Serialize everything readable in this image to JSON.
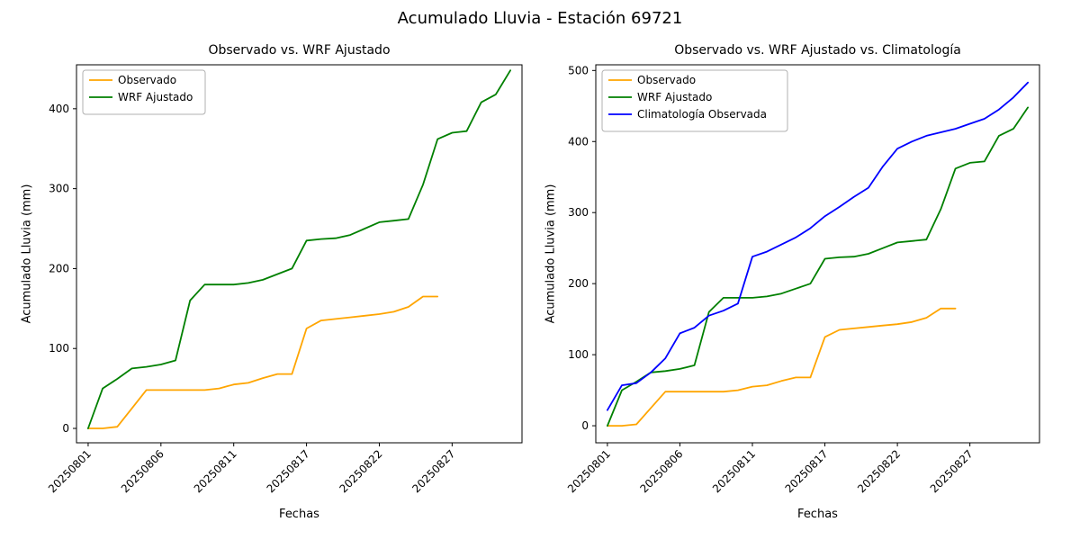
{
  "figure": {
    "title": "Acumulado Lluvia - Estación 69721",
    "background": "#ffffff"
  },
  "colors": {
    "observado": "#ffa500",
    "wrf_ajustado": "#008000",
    "climatologia": "#0000ff",
    "axes": "#000000",
    "legend_border": "#b0b0b0"
  },
  "chart_data": [
    {
      "type": "line",
      "title": "Observado vs. WRF Ajustado",
      "xlabel": "Fechas",
      "ylabel": "Acumulado Lluvia (mm)",
      "grid": false,
      "legend_position": "upper left",
      "ylim": [
        -18,
        455
      ],
      "yticks": [
        0,
        100,
        200,
        300,
        400
      ],
      "xtick_indices": [
        0,
        5,
        10,
        15,
        20,
        25
      ],
      "categories": [
        "20250801",
        "20250802",
        "20250803",
        "20250804",
        "20250805",
        "20250806",
        "20250807",
        "20250808",
        "20250809",
        "20250810",
        "20250811",
        "20250812",
        "20250813",
        "20250814",
        "20250815",
        "20250817",
        "20250818",
        "20250819",
        "20250820",
        "20250821",
        "20250822",
        "20250823",
        "20250824",
        "20250825",
        "20250826",
        "20250827",
        "20250828",
        "20250829",
        "20250830",
        "20250831"
      ],
      "series": [
        {
          "name": "Observado",
          "color": "#ffa500",
          "values": [
            0,
            0,
            2,
            25,
            48,
            48,
            48,
            48,
            48,
            50,
            55,
            57,
            63,
            68,
            68,
            125,
            135,
            137,
            139,
            141,
            143,
            146,
            152,
            165,
            165
          ]
        },
        {
          "name": "WRF Ajustado",
          "color": "#008000",
          "values": [
            0,
            50,
            62,
            75,
            77,
            80,
            85,
            160,
            180,
            180,
            180,
            182,
            186,
            193,
            200,
            235,
            237,
            238,
            242,
            250,
            258,
            260,
            262,
            305,
            362,
            370,
            372,
            408,
            418,
            448
          ]
        }
      ]
    },
    {
      "type": "line",
      "title": "Observado vs. WRF Ajustado vs. Climatología",
      "xlabel": "Fechas",
      "ylabel": "Acumulado Lluvia (mm)",
      "grid": false,
      "legend_position": "upper left",
      "ylim": [
        -24,
        508
      ],
      "yticks": [
        0,
        100,
        200,
        300,
        400,
        500
      ],
      "xtick_indices": [
        0,
        5,
        10,
        15,
        20,
        25
      ],
      "categories": [
        "20250801",
        "20250802",
        "20250803",
        "20250804",
        "20250805",
        "20250806",
        "20250807",
        "20250808",
        "20250809",
        "20250810",
        "20250811",
        "20250812",
        "20250813",
        "20250814",
        "20250815",
        "20250817",
        "20250818",
        "20250819",
        "20250820",
        "20250821",
        "20250822",
        "20250823",
        "20250824",
        "20250825",
        "20250826",
        "20250827",
        "20250828",
        "20250829",
        "20250830",
        "20250831"
      ],
      "series": [
        {
          "name": "Observado",
          "color": "#ffa500",
          "values": [
            0,
            0,
            2,
            25,
            48,
            48,
            48,
            48,
            48,
            50,
            55,
            57,
            63,
            68,
            68,
            125,
            135,
            137,
            139,
            141,
            143,
            146,
            152,
            165,
            165
          ]
        },
        {
          "name": "WRF Ajustado",
          "color": "#008000",
          "values": [
            0,
            50,
            62,
            75,
            77,
            80,
            85,
            160,
            180,
            180,
            180,
            182,
            186,
            193,
            200,
            235,
            237,
            238,
            242,
            250,
            258,
            260,
            262,
            305,
            362,
            370,
            372,
            408,
            418,
            448
          ]
        },
        {
          "name": "Climatología Observada",
          "color": "#0000ff",
          "values": [
            22,
            57,
            60,
            75,
            95,
            130,
            138,
            155,
            162,
            172,
            238,
            245,
            255,
            265,
            278,
            295,
            308,
            322,
            335,
            365,
            390,
            400,
            408,
            413,
            418,
            425,
            432,
            445,
            462,
            483
          ]
        }
      ]
    }
  ]
}
